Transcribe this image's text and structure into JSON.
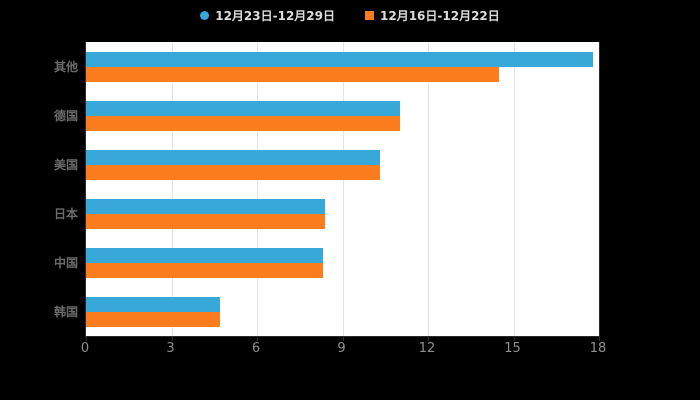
{
  "background_color": "#000000",
  "plot_background_color": "#ffffff",
  "legend": {
    "items": [
      {
        "label": "12月23日-12月29日",
        "marker": "circle",
        "color": "#38a8d8"
      },
      {
        "label": "12月16日-12月22日",
        "marker": "square",
        "color": "#fc7d1d"
      }
    ]
  },
  "chart_data": {
    "type": "bar",
    "orientation": "horizontal",
    "title": "",
    "xlabel": "",
    "ylabel": "",
    "categories": [
      "其他",
      "德国",
      "美国",
      "日本",
      "中国",
      "韩国"
    ],
    "series": [
      {
        "name": "12月23日-12月29日",
        "color": "#38a8d8",
        "values": [
          17.8,
          11.0,
          10.3,
          8.4,
          8.3,
          4.7
        ]
      },
      {
        "name": "12月16日-12月22日",
        "color": "#fc7d1d",
        "values": [
          14.5,
          11.0,
          10.3,
          8.4,
          8.3,
          4.7
        ]
      }
    ],
    "xlim": [
      0,
      18
    ],
    "xticks": [
      0,
      3,
      6,
      9,
      12,
      15,
      18
    ],
    "grid": true,
    "legend_position": "top"
  }
}
